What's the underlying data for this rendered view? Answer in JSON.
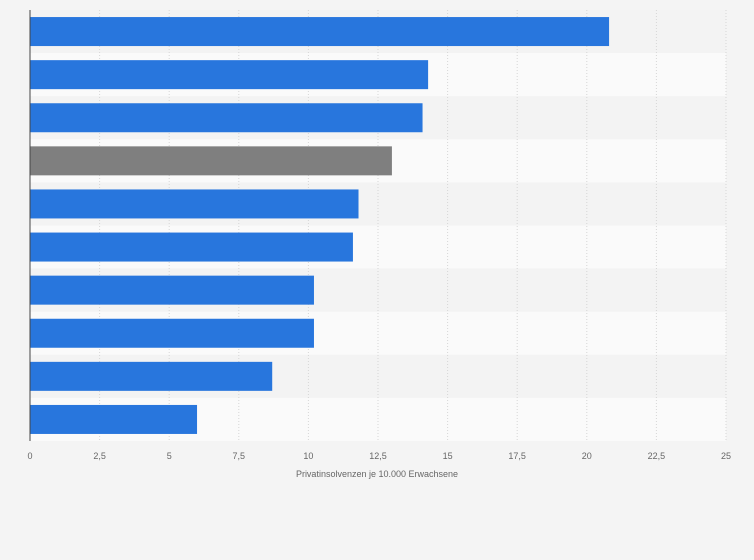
{
  "chart_data": {
    "type": "bar",
    "orientation": "horizontal",
    "categories": [
      "",
      "",
      "",
      "",
      "",
      "",
      "",
      "",
      "",
      ""
    ],
    "values": [
      20.8,
      14.3,
      14.1,
      13.0,
      11.8,
      11.6,
      10.2,
      10.2,
      8.7,
      6.0
    ],
    "highlight_index": 3,
    "xlabel": "Privatinsolvenzen je 10.000 Erwachsene",
    "ylabel": "",
    "xlim": [
      0,
      25
    ],
    "x_ticks": [
      0,
      2.5,
      5,
      7.5,
      10,
      12.5,
      15,
      17.5,
      20,
      22.5,
      25
    ],
    "x_tick_labels": [
      "0",
      "2,5",
      "5",
      "7,5",
      "10",
      "12,5",
      "15",
      "17,5",
      "20",
      "22,5",
      "25"
    ],
    "grid": true,
    "colors": {
      "bar": "#2876dd",
      "highlight": "#7f7f7f",
      "band_light": "#fafafa",
      "band_dark": "#f3f3f3",
      "grid": "#d6d6d6",
      "axis": "#444444"
    }
  }
}
